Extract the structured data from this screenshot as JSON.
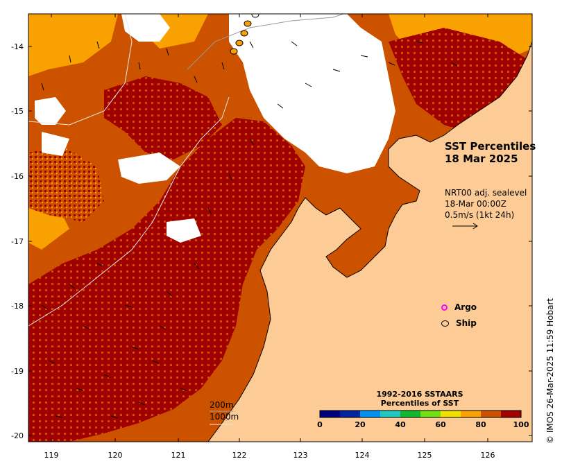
{
  "map": {
    "title_line1": "SST Percentiles",
    "title_line2": "18 Mar 2025",
    "velocity_label_1": "NRT00 adj. sealevel",
    "velocity_label_2": "18-Mar 00:00Z",
    "velocity_label_3": "0.5m/s (1kt 24h)",
    "isobath_200": "200m",
    "isobath_1000": "1000m",
    "credit": "© IMOS 26-Mar-2025 11:59 Hobart",
    "colors": {
      "land": "#fccb96",
      "very_high": "#a10000",
      "high": "#cc5200",
      "upper": "#f9a100",
      "cloud": "#ffffff"
    }
  },
  "axes": {
    "lon_ticks": [
      "119",
      "120",
      "121",
      "122",
      "123",
      "124",
      "125",
      "126"
    ],
    "lat_ticks": [
      "-14",
      "-15",
      "-16",
      "-17",
      "-18",
      "-19",
      "-20"
    ]
  },
  "legend": {
    "argo_label": "Argo",
    "ship_label": "Ship",
    "argo_color": "#ff00ff",
    "ship_color": "#000000"
  },
  "colorbar": {
    "title_line1": "1992-2016 SSTAARS",
    "title_line2": "Percentiles of SST",
    "ticks": [
      "0",
      "20",
      "40",
      "60",
      "80",
      "100"
    ],
    "colors": [
      "#00007f",
      "#0023a0",
      "#0090f0",
      "#20c8c0",
      "#10b830",
      "#70e010",
      "#f0e000",
      "#f9a100",
      "#cc5200",
      "#a10000"
    ]
  }
}
